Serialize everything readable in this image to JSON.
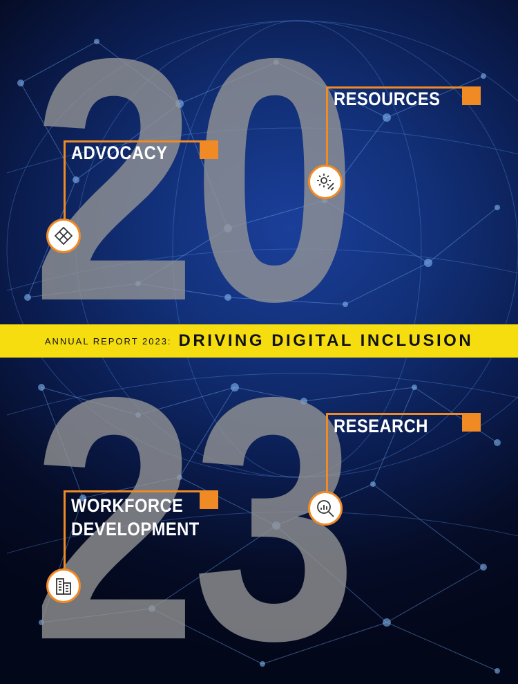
{
  "cover": {
    "year_top": "20",
    "year_bottom": "23",
    "banner": {
      "prefix": "ANNUAL REPORT 2023:",
      "title": "DRIVING DIGITAL INCLUSION"
    },
    "pillars": [
      {
        "label": "ADVOCACY",
        "icon": "hands-network-icon"
      },
      {
        "label": "RESOURCES",
        "icon": "gear-tools-icon"
      },
      {
        "label": "RESEARCH",
        "icon": "magnifier-chart-icon"
      },
      {
        "label_line1": "WORKFORCE",
        "label_line2": "DEVELOPMENT",
        "icon": "buildings-icon"
      }
    ],
    "colors": {
      "accent": "#f08a25",
      "banner": "#f5dd10",
      "background": "#0a1b4c",
      "numerals": "#969696"
    }
  }
}
